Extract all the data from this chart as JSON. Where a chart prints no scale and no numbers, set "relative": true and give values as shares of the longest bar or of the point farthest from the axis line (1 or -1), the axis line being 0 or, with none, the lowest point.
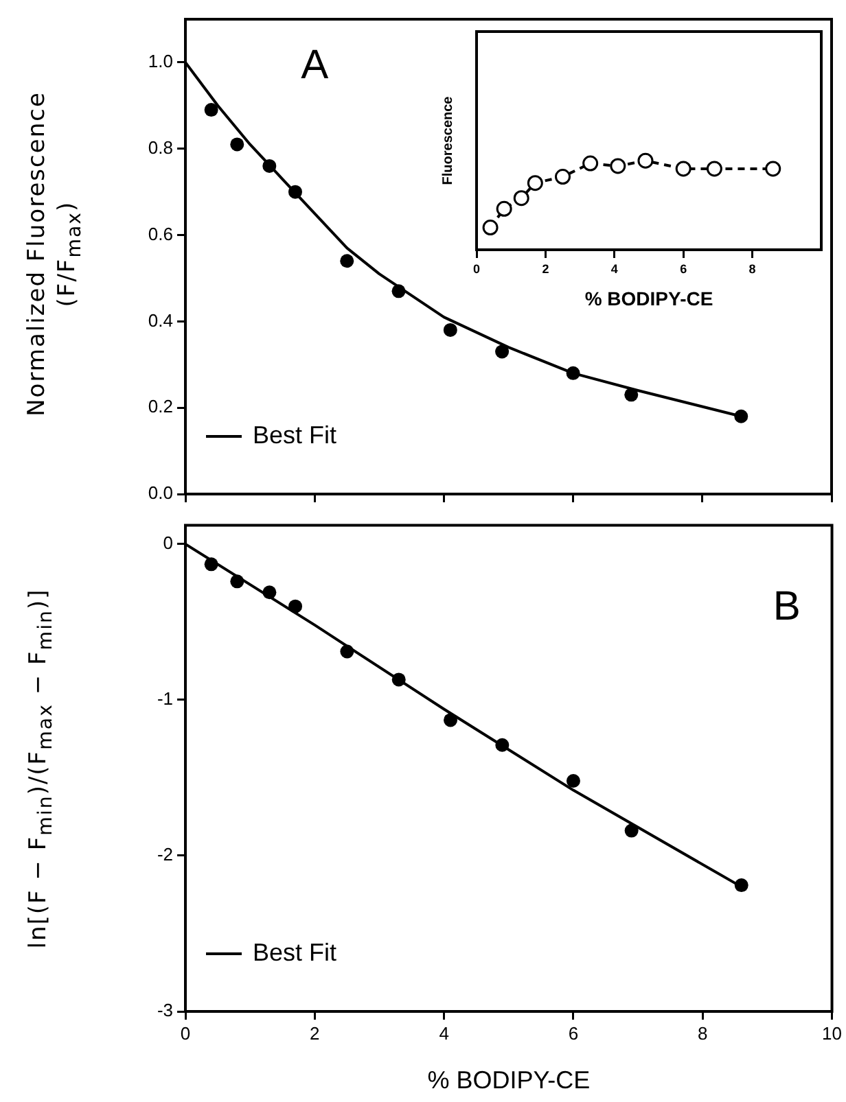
{
  "chart_data": [
    {
      "type": "scatter",
      "ylabel": "Normalized Fluorescence\n(F/F$_{max}$)",
      "annotations": [
        "A"
      ],
      "xlim": [
        0,
        10
      ],
      "xticks": [
        0,
        2,
        4,
        6,
        8,
        10
      ],
      "ylim": [
        0,
        1.1
      ],
      "yticks": [
        {
          "value": 0,
          "label": "0.0"
        },
        {
          "value": 0.2,
          "label": "0.2"
        },
        {
          "value": 0.4,
          "label": "0.4"
        },
        {
          "value": 0.6,
          "label": "0.6"
        },
        {
          "value": 0.8,
          "label": "0.8"
        },
        {
          "value": 1,
          "label": "1.0"
        }
      ],
      "tick_labels": "y",
      "grid": false,
      "legend": "bottom left",
      "series": [
        {
          "type": "scatter",
          "color": "#000000",
          "marker": "circle",
          "x": [
            0.4,
            0.8,
            1.3,
            1.7,
            2.5,
            3.3,
            4.1,
            4.9,
            6.0,
            6.9,
            8.6
          ],
          "values": [
            0.89,
            0.81,
            0.76,
            0.7,
            0.54,
            0.47,
            0.38,
            0.33,
            0.28,
            0.23,
            0.18
          ]
        },
        {
          "type": "line",
          "name": "Best Fit",
          "color": "#000000",
          "marker": "none",
          "line_style": "solid",
          "x": [
            0,
            0.5,
            1,
            1.5,
            2,
            2.5,
            3,
            4,
            5,
            6,
            7,
            8.6
          ],
          "values": [
            1.0,
            0.9,
            0.81,
            0.73,
            0.65,
            0.57,
            0.51,
            0.41,
            0.34,
            0.28,
            0.24,
            0.18
          ]
        }
      ]
    },
    {
      "type": "line",
      "relative": true,
      "ylabel": "Fluorescence",
      "xlabel": "% BODIPY-CE",
      "xlim": [
        0,
        10
      ],
      "xticks": [
        0,
        2,
        4,
        6,
        8
      ],
      "tick_labels": "x",
      "grid": false,
      "color": "#000000",
      "marker": "circle",
      "line_style": "dashed",
      "x": [
        0.4,
        0.8,
        1.3,
        1.7,
        2.5,
        3.3,
        4.1,
        4.9,
        6.0,
        6.9,
        8.6
      ],
      "values": [
        0.25,
        0.46,
        0.58,
        0.75,
        0.82,
        0.97,
        0.94,
        1,
        0.91,
        0.91,
        0.91
      ]
    },
    {
      "type": "scatter",
      "ylabel": "ln[(F − F$_{min}$)/(F$_{max}$ − F$_{min}$)]",
      "xlabel": "% BODIPY-CE",
      "annotations": [
        "B"
      ],
      "xlim": [
        0,
        10
      ],
      "xticks": [
        0,
        2,
        4,
        6,
        8,
        10
      ],
      "ylim": [
        -3,
        0.12
      ],
      "yticks": [
        -3,
        -2,
        -1,
        0
      ],
      "grid": false,
      "legend": "bottom left",
      "series": [
        {
          "type": "scatter",
          "color": "#000000",
          "marker": "circle",
          "x": [
            0.4,
            0.8,
            1.3,
            1.7,
            2.5,
            3.3,
            4.1,
            4.9,
            6.0,
            6.9,
            8.6
          ],
          "values": [
            -0.13,
            -0.24,
            -0.31,
            -0.4,
            -0.69,
            -0.87,
            -1.13,
            -1.29,
            -1.52,
            -1.84,
            -2.19
          ]
        },
        {
          "type": "line",
          "name": "Best Fit",
          "color": "#000000",
          "marker": "none",
          "line_style": "solid",
          "x": [
            0,
            2,
            4,
            6,
            8.6
          ],
          "values": [
            0,
            -0.52,
            -1.06,
            -1.58,
            -2.2
          ]
        }
      ]
    }
  ]
}
